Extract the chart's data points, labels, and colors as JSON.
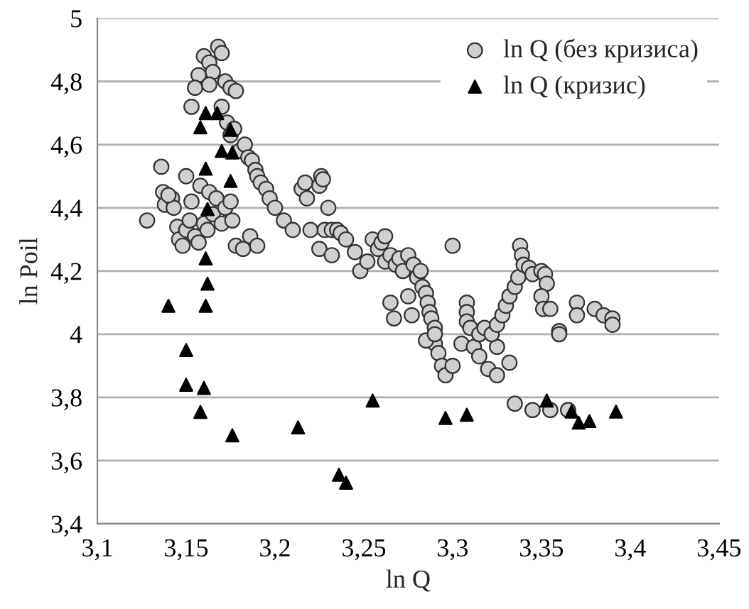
{
  "chart_data": {
    "type": "scatter",
    "xlabel": "ln Q",
    "ylabel": "ln Poil",
    "legend": "top right",
    "grid": "y",
    "xlim": [
      3.1,
      3.45
    ],
    "ylim": [
      3.4,
      5
    ],
    "xticks": [
      {
        "value": 3.1,
        "label": "3,1"
      },
      {
        "value": 3.15,
        "label": "3,15"
      },
      {
        "value": 3.2,
        "label": "3,2"
      },
      {
        "value": 3.25,
        "label": "3,25"
      },
      {
        "value": 3.3,
        "label": "3,3"
      },
      {
        "value": 3.35,
        "label": "3,35"
      },
      {
        "value": 3.4,
        "label": "3,4"
      },
      {
        "value": 3.45,
        "label": "3,45"
      }
    ],
    "yticks": [
      {
        "value": 3.4,
        "label": "3,4"
      },
      {
        "value": 3.6,
        "label": "3,6"
      },
      {
        "value": 3.8,
        "label": "3,8"
      },
      4,
      {
        "value": 4.2,
        "label": "4,2"
      },
      {
        "value": 4.4,
        "label": "4,4"
      },
      {
        "value": 4.6,
        "label": "4,6"
      },
      {
        "value": 4.8,
        "label": "4,8"
      },
      5
    ],
    "series": [
      {
        "name": "ln Q (без кризиса)",
        "color": "#d0d0d0",
        "marker": "circle",
        "x": [
          3.128,
          3.136,
          3.137,
          3.138,
          3.142,
          3.145,
          3.146,
          3.148,
          3.15,
          3.15,
          3.152,
          3.153,
          3.155,
          3.157,
          3.158,
          3.16,
          3.162,
          3.163,
          3.165,
          3.167,
          3.17,
          3.172,
          3.175,
          3.176,
          3.178,
          3.182,
          3.186,
          3.19,
          3.143,
          3.14,
          3.16,
          3.163,
          3.165,
          3.168,
          3.17,
          3.172,
          3.157,
          3.155,
          3.153,
          3.163,
          3.175,
          3.178,
          3.17,
          3.173,
          3.175,
          3.177,
          3.18,
          3.183,
          3.185,
          3.187,
          3.189,
          3.19,
          3.192,
          3.195,
          3.197,
          3.2,
          3.205,
          3.21,
          3.215,
          3.217,
          3.218,
          3.225,
          3.226,
          3.227,
          3.23,
          3.22,
          3.228,
          3.232,
          3.235,
          3.237,
          3.225,
          3.232,
          3.24,
          3.245,
          3.248,
          3.252,
          3.255,
          3.258,
          3.26,
          3.262,
          3.262,
          3.265,
          3.268,
          3.27,
          3.272,
          3.275,
          3.278,
          3.28,
          3.282,
          3.283,
          3.285,
          3.286,
          3.287,
          3.288,
          3.29,
          3.29,
          3.292,
          3.294,
          3.296,
          3.3,
          3.265,
          3.267,
          3.275,
          3.277,
          3.285,
          3.29,
          3.3,
          3.305,
          3.312,
          3.315,
          3.32,
          3.325,
          3.335,
          3.308,
          3.308,
          3.308,
          3.31,
          3.315,
          3.318,
          3.322,
          3.325,
          3.328,
          3.33,
          3.332,
          3.335,
          3.337,
          3.338,
          3.339,
          3.34,
          3.343,
          3.345,
          3.35,
          3.352,
          3.353,
          3.35,
          3.351,
          3.355,
          3.36,
          3.36,
          3.37,
          3.37,
          3.38,
          3.385,
          3.39,
          3.39,
          3.332,
          3.325,
          3.345,
          3.355,
          3.365
        ],
        "values": [
          4.36,
          4.53,
          4.45,
          4.41,
          4.43,
          4.34,
          4.3,
          4.28,
          4.5,
          4.33,
          4.36,
          4.42,
          4.31,
          4.29,
          4.47,
          4.35,
          4.33,
          4.45,
          4.38,
          4.43,
          4.35,
          4.4,
          4.42,
          4.36,
          4.28,
          4.27,
          4.31,
          4.28,
          4.4,
          4.44,
          4.88,
          4.86,
          4.83,
          4.91,
          4.89,
          4.8,
          4.82,
          4.78,
          4.72,
          4.79,
          4.78,
          4.77,
          4.72,
          4.67,
          4.63,
          4.65,
          4.58,
          4.6,
          4.56,
          4.55,
          4.52,
          4.5,
          4.48,
          4.46,
          4.43,
          4.4,
          4.36,
          4.33,
          4.46,
          4.48,
          4.43,
          4.47,
          4.5,
          4.49,
          4.4,
          4.33,
          4.33,
          4.33,
          4.33,
          4.32,
          4.27,
          4.25,
          4.3,
          4.26,
          4.2,
          4.23,
          4.3,
          4.27,
          4.29,
          4.31,
          4.23,
          4.25,
          4.22,
          4.24,
          4.2,
          4.25,
          4.22,
          4.18,
          4.2,
          4.15,
          4.13,
          4.1,
          4.07,
          4.05,
          4.02,
          3.97,
          3.94,
          3.9,
          3.87,
          4.28,
          4.1,
          4.05,
          4.12,
          4.06,
          3.98,
          4.0,
          3.9,
          3.97,
          3.96,
          3.93,
          3.89,
          3.96,
          3.78,
          4.1,
          4.07,
          4.04,
          4.02,
          4.0,
          4.02,
          4.0,
          4.03,
          4.06,
          4.09,
          4.12,
          4.15,
          4.18,
          4.28,
          4.25,
          4.22,
          4.21,
          4.19,
          4.2,
          4.19,
          4.16,
          4.12,
          4.08,
          4.08,
          4.01,
          4.0,
          4.1,
          4.06,
          4.08,
          4.06,
          4.05,
          4.03,
          3.91,
          3.87,
          3.76,
          3.76,
          3.76
        ]
      },
      {
        "name": "ln Q (кризис)",
        "color": "#000000",
        "marker": "triangle",
        "x": [
          3.161,
          3.1675,
          3.158,
          3.175,
          3.17,
          3.176,
          3.161,
          3.175,
          3.162,
          3.161,
          3.162,
          3.14,
          3.161,
          3.15,
          3.15,
          3.16,
          3.158,
          3.176,
          3.213,
          3.255,
          3.296,
          3.308,
          3.236,
          3.24,
          3.353,
          3.367,
          3.371,
          3.377,
          3.392
        ],
        "values": [
          4.7,
          4.7,
          4.655,
          4.647,
          4.58,
          4.575,
          4.524,
          4.485,
          4.396,
          4.24,
          4.16,
          4.09,
          4.09,
          3.95,
          3.84,
          3.83,
          3.754,
          3.68,
          3.705,
          3.79,
          3.735,
          3.745,
          3.555,
          3.53,
          3.79,
          3.755,
          3.72,
          3.725,
          3.755
        ]
      }
    ]
  }
}
